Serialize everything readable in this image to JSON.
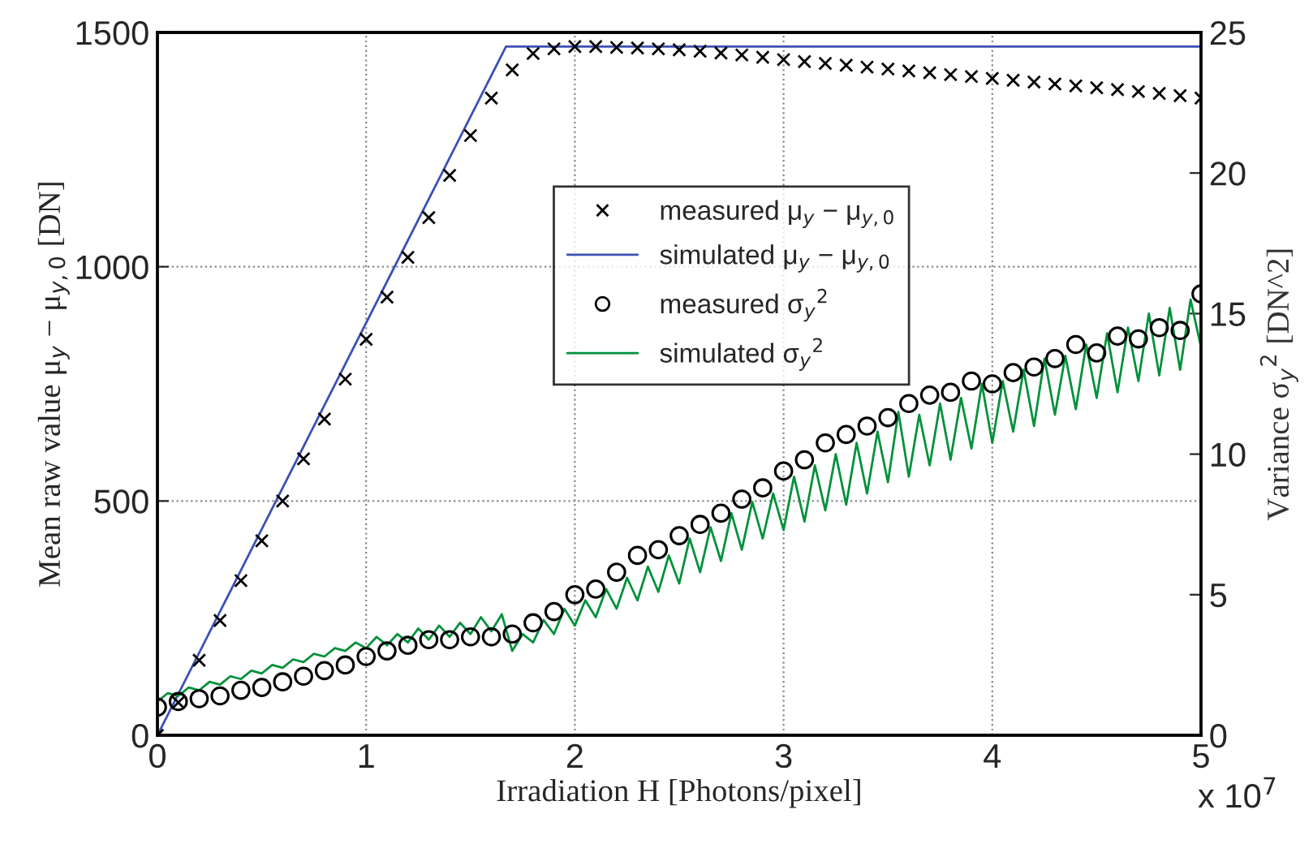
{
  "chart_data": {
    "type": "line",
    "xlabel": "Irradiation H [Photons/pixel]",
    "ylabel": "Mean raw value μ$_{y}$ − μ$_{y,0}$ [DN]",
    "y2label": "Variance σ$_{y}$$^{2}$ [DN^2]",
    "xlim": [
      0,
      5
    ],
    "xticks": [
      0,
      1,
      2,
      3,
      4,
      5
    ],
    "ylim": [
      0,
      1500
    ],
    "yticks": [
      0,
      500,
      1000,
      1500
    ],
    "y2lim": [
      0,
      25
    ],
    "y2ticks": [
      0,
      5,
      10,
      15,
      20,
      25
    ],
    "grid": true,
    "legend": "top",
    "annotations": [
      "x 10$^{7}$"
    ],
    "series": [
      {
        "name": "measured μ$_{y}$ − μ$_{y,0}$",
        "type": "scatter",
        "marker": "cross",
        "color": "#000000",
        "x": [
          0,
          0.1,
          0.2,
          0.3,
          0.4,
          0.5,
          0.6,
          0.7,
          0.8,
          0.9,
          1.0,
          1.1,
          1.2,
          1.3,
          1.4,
          1.5,
          1.6,
          1.7,
          1.8,
          1.9,
          2.0,
          2.1,
          2.2,
          2.3,
          2.4,
          2.5,
          2.6,
          2.7,
          2.8,
          2.9,
          3.0,
          3.1,
          3.2,
          3.3,
          3.4,
          3.5,
          3.6,
          3.7,
          3.8,
          3.9,
          4.0,
          4.1,
          4.2,
          4.3,
          4.4,
          4.5,
          4.6,
          4.7,
          4.8,
          4.9,
          5.0
        ],
        "values": [
          0,
          70,
          160,
          245,
          330,
          415,
          500,
          590,
          675,
          760,
          845,
          935,
          1020,
          1105,
          1195,
          1280,
          1360,
          1420,
          1455,
          1465,
          1470,
          1470,
          1468,
          1467,
          1465,
          1463,
          1460,
          1456,
          1452,
          1447,
          1442,
          1438,
          1434,
          1430,
          1426,
          1422,
          1418,
          1414,
          1410,
          1406,
          1402,
          1398,
          1394,
          1390,
          1386,
          1382,
          1378,
          1374,
          1370,
          1365,
          1360
        ]
      },
      {
        "name": "simulated μ$_{y}$ − μ$_{y,0}$",
        "marker": "none",
        "color": "#3c50b4",
        "x": [
          0,
          1.67,
          5
        ],
        "values": [
          0,
          1470,
          1470
        ]
      },
      {
        "name": "measured σ$_{y}$$^{2}$",
        "type": "scatter",
        "marker": "circle",
        "axis": "y2",
        "color": "#000000",
        "x": [
          0,
          0.1,
          0.2,
          0.3,
          0.4,
          0.5,
          0.6,
          0.7,
          0.8,
          0.9,
          1.0,
          1.1,
          1.2,
          1.3,
          1.4,
          1.5,
          1.6,
          1.7,
          1.8,
          1.9,
          2.0,
          2.1,
          2.2,
          2.3,
          2.4,
          2.5,
          2.6,
          2.7,
          2.8,
          2.9,
          3.0,
          3.1,
          3.2,
          3.3,
          3.4,
          3.5,
          3.6,
          3.7,
          3.8,
          3.9,
          4.0,
          4.1,
          4.2,
          4.3,
          4.4,
          4.5,
          4.6,
          4.7,
          4.8,
          4.9,
          5.0
        ],
        "values": [
          1.0,
          1.2,
          1.3,
          1.4,
          1.6,
          1.7,
          1.9,
          2.1,
          2.3,
          2.5,
          2.8,
          3.0,
          3.2,
          3.4,
          3.4,
          3.5,
          3.5,
          3.6,
          4.0,
          4.4,
          5.0,
          5.2,
          5.8,
          6.4,
          6.6,
          7.1,
          7.5,
          7.9,
          8.4,
          8.8,
          9.4,
          9.8,
          10.4,
          10.7,
          11.0,
          11.3,
          11.8,
          12.1,
          12.2,
          12.6,
          12.5,
          12.9,
          13.1,
          13.4,
          13.9,
          13.6,
          14.2,
          14.1,
          14.5,
          14.4,
          15.7
        ]
      },
      {
        "name": "simulated σ$_{y}$$^{2}$",
        "marker": "none",
        "axis": "y2",
        "color": "#00913a",
        "x": [
          0,
          0.05,
          0.1,
          0.15,
          0.2,
          0.25,
          0.3,
          0.35,
          0.4,
          0.45,
          0.5,
          0.55,
          0.6,
          0.65,
          0.7,
          0.75,
          0.8,
          0.85,
          0.9,
          0.95,
          1.0,
          1.05,
          1.1,
          1.15,
          1.2,
          1.25,
          1.3,
          1.35,
          1.4,
          1.45,
          1.5,
          1.55,
          1.6,
          1.65,
          1.7,
          1.75,
          1.8,
          1.85,
          1.9,
          1.95,
          2.0,
          2.05,
          2.1,
          2.15,
          2.2,
          2.25,
          2.3,
          2.35,
          2.4,
          2.45,
          2.5,
          2.55,
          2.6,
          2.65,
          2.7,
          2.75,
          2.8,
          2.85,
          2.9,
          2.95,
          3.0,
          3.05,
          3.1,
          3.15,
          3.2,
          3.25,
          3.3,
          3.35,
          3.4,
          3.45,
          3.5,
          3.55,
          3.6,
          3.65,
          3.7,
          3.75,
          3.8,
          3.85,
          3.9,
          3.95,
          4.0,
          4.05,
          4.1,
          4.15,
          4.2,
          4.25,
          4.3,
          4.35,
          4.4,
          4.45,
          4.5,
          4.55,
          4.6,
          4.65,
          4.7,
          4.75,
          4.8,
          4.85,
          4.9,
          4.95,
          5.0
        ],
        "values": [
          1.2,
          1.5,
          1.4,
          1.7,
          1.6,
          1.9,
          1.8,
          2.1,
          2.0,
          2.3,
          2.2,
          2.5,
          2.4,
          2.7,
          2.6,
          2.9,
          2.8,
          3.1,
          3.0,
          3.3,
          3.1,
          3.5,
          3.2,
          3.6,
          3.3,
          3.8,
          3.4,
          3.9,
          3.5,
          4.0,
          3.6,
          4.2,
          3.7,
          4.3,
          3.0,
          3.6,
          3.3,
          4.1,
          3.6,
          4.5,
          3.9,
          4.8,
          4.2,
          5.2,
          4.5,
          5.6,
          4.8,
          6.0,
          5.1,
          6.4,
          5.4,
          7.0,
          5.8,
          7.4,
          6.2,
          7.9,
          6.6,
          8.3,
          7.0,
          8.6,
          7.3,
          9.2,
          7.6,
          9.6,
          8.0,
          10.0,
          8.2,
          10.4,
          8.6,
          10.8,
          9.0,
          11.5,
          9.2,
          11.4,
          9.6,
          11.8,
          9.8,
          12.0,
          10.2,
          12.5,
          10.4,
          12.6,
          10.8,
          13.0,
          11.0,
          13.4,
          11.4,
          13.5,
          11.6,
          13.9,
          12.0,
          14.3,
          12.2,
          14.5,
          12.6,
          15.0,
          12.8,
          15.2,
          13.0,
          15.5,
          13.8
        ]
      }
    ]
  }
}
